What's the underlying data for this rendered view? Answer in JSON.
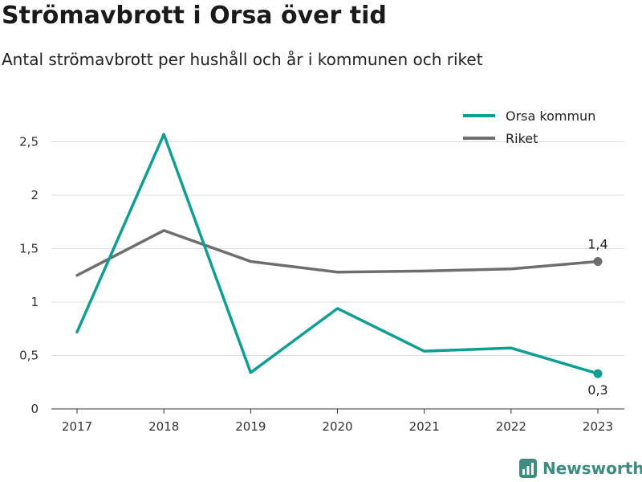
{
  "title": "Strömavbrott i Orsa över tid",
  "subtitle": "Antal strömavbrott per hushåll och år i kommunen och riket",
  "brand": {
    "name": "Newsworthy",
    "icon": "newsworthy-logo-icon"
  },
  "chart_data": {
    "type": "line",
    "title": "Strömavbrott i Orsa över tid",
    "subtitle": "Antal strömavbrott per hushåll och år i kommunen och riket",
    "x": [
      2017,
      2018,
      2019,
      2020,
      2021,
      2022,
      2023
    ],
    "x_tick_labels": [
      "2017",
      "2018",
      "2019",
      "2020",
      "2021",
      "2022",
      "2023"
    ],
    "y_ticks": [
      0,
      0.5,
      1,
      1.5,
      2,
      2.5
    ],
    "y_tick_labels": [
      "0",
      "0,5",
      "1",
      "1,5",
      "2",
      "2,5"
    ],
    "ylim": [
      0,
      2.5
    ],
    "grid": "horizontal",
    "legend_position": "top-right",
    "series": [
      {
        "name": "Orsa kommun",
        "color": "#0e9e94",
        "values": [
          0.72,
          2.57,
          0.34,
          0.94,
          0.54,
          0.57,
          0.33
        ],
        "end_label": "0,3"
      },
      {
        "name": "Riket",
        "color": "#6e6e6e",
        "values": [
          1.25,
          1.67,
          1.38,
          1.28,
          1.29,
          1.31,
          1.38
        ],
        "end_label": "1,4"
      }
    ]
  }
}
